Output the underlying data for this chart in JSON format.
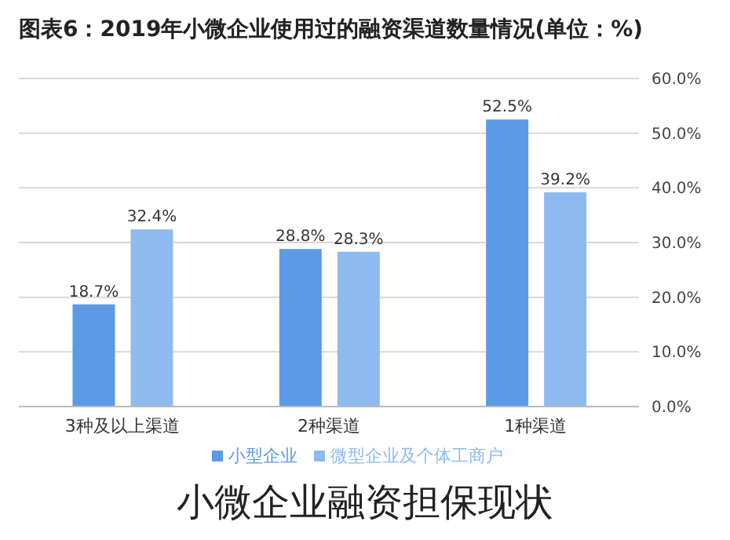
{
  "chart_data": {
    "type": "bar",
    "title": "图表6：2019年小微企业使用过的融资渠道数量情况(单位：%)",
    "categories": [
      "3种及以上渠道",
      "2种渠道",
      "1种渠道"
    ],
    "series": [
      {
        "name": "小型企业",
        "color": "#5b9be6",
        "values": [
          18.7,
          28.8,
          52.5
        ],
        "value_labels": [
          "18.7%",
          "28.8%",
          "52.5%"
        ]
      },
      {
        "name": "微型企业及个体工商户",
        "color": "#8dbbef",
        "values": [
          32.4,
          28.3,
          39.2
        ],
        "value_labels": [
          "32.4%",
          "28.3%",
          "39.2%"
        ]
      }
    ],
    "ylim": [
      0,
      60
    ],
    "yticks": [
      {
        "value": 0,
        "label": "0.0%"
      },
      {
        "value": 10,
        "label": "10.0%"
      },
      {
        "value": 20,
        "label": "20.0%"
      },
      {
        "value": 30,
        "label": "30.0%"
      },
      {
        "value": 40,
        "label": "40.0%"
      },
      {
        "value": 50,
        "label": "50.0%"
      },
      {
        "value": 60,
        "label": "60.0%"
      }
    ],
    "grid": "y",
    "legend": "bottom",
    "annotations": [
      "小微企业融资担保现状"
    ]
  }
}
